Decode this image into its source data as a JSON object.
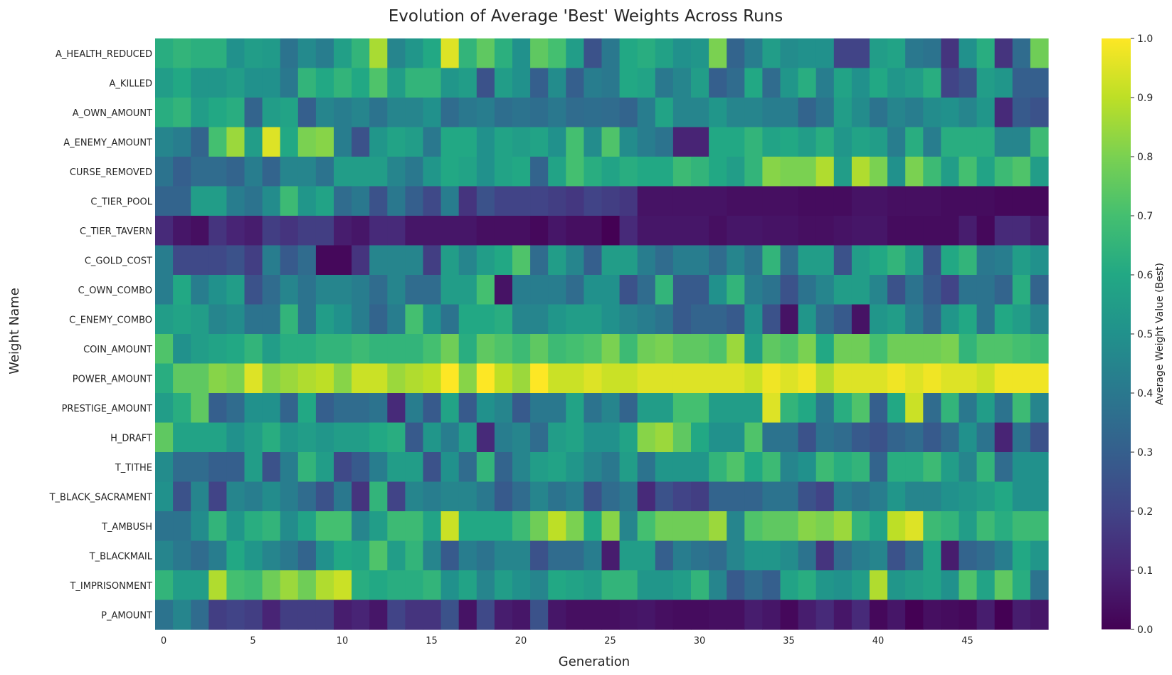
{
  "chart_data": {
    "type": "heatmap",
    "title": "Evolution of Average 'Best' Weights Across Runs",
    "xlabel": "Generation",
    "ylabel": "Weight Name",
    "x": [
      0,
      1,
      2,
      3,
      4,
      5,
      6,
      7,
      8,
      9,
      10,
      11,
      12,
      13,
      14,
      15,
      16,
      17,
      18,
      19,
      20,
      21,
      22,
      23,
      24,
      25,
      26,
      27,
      28,
      29,
      30,
      31,
      32,
      33,
      34,
      35,
      36,
      37,
      38,
      39,
      40,
      41,
      42,
      43,
      44,
      45,
      46,
      47,
      48,
      49
    ],
    "x_ticks": [
      0,
      5,
      10,
      15,
      20,
      25,
      30,
      35,
      40,
      45
    ],
    "rows": [
      "A_HEALTH_REDUCED",
      "A_KILLED",
      "A_OWN_AMOUNT",
      "A_ENEMY_AMOUNT",
      "CURSE_REMOVED",
      "C_TIER_POOL",
      "C_TIER_TAVERN",
      "C_GOLD_COST",
      "C_OWN_COMBO",
      "C_ENEMY_COMBO",
      "COIN_AMOUNT",
      "POWER_AMOUNT",
      "PRESTIGE_AMOUNT",
      "H_DRAFT",
      "T_TITHE",
      "T_BLACK_SACRAMENT",
      "T_AMBUSH",
      "T_BLACKMAIL",
      "T_IMPRISONMENT",
      "P_AMOUNT"
    ],
    "values": [
      [
        0.62,
        0.65,
        0.63,
        0.63,
        0.5,
        0.55,
        0.54,
        0.38,
        0.47,
        0.42,
        0.56,
        0.65,
        0.87,
        0.45,
        0.52,
        0.6,
        0.95,
        0.65,
        0.75,
        0.63,
        0.5,
        0.75,
        0.7,
        0.55,
        0.25,
        0.4,
        0.6,
        0.62,
        0.57,
        0.5,
        0.52,
        0.8,
        0.32,
        0.42,
        0.55,
        0.48,
        0.5,
        0.5,
        0.2,
        0.2,
        0.55,
        0.58,
        0.4,
        0.38,
        0.15,
        0.5,
        0.62,
        0.15,
        0.35,
        0.78
      ],
      [
        0.55,
        0.6,
        0.52,
        0.52,
        0.55,
        0.5,
        0.5,
        0.4,
        0.65,
        0.6,
        0.65,
        0.6,
        0.72,
        0.55,
        0.65,
        0.65,
        0.52,
        0.55,
        0.25,
        0.55,
        0.5,
        0.3,
        0.48,
        0.3,
        0.42,
        0.4,
        0.6,
        0.58,
        0.4,
        0.45,
        0.55,
        0.3,
        0.35,
        0.6,
        0.35,
        0.52,
        0.62,
        0.42,
        0.58,
        0.5,
        0.6,
        0.52,
        0.55,
        0.62,
        0.2,
        0.25,
        0.55,
        0.52,
        0.3,
        0.3
      ],
      [
        0.62,
        0.65,
        0.55,
        0.6,
        0.62,
        0.32,
        0.55,
        0.58,
        0.3,
        0.45,
        0.42,
        0.45,
        0.38,
        0.45,
        0.45,
        0.5,
        0.35,
        0.4,
        0.42,
        0.36,
        0.38,
        0.36,
        0.4,
        0.35,
        0.36,
        0.35,
        0.32,
        0.42,
        0.58,
        0.45,
        0.45,
        0.52,
        0.45,
        0.45,
        0.42,
        0.42,
        0.32,
        0.38,
        0.55,
        0.48,
        0.38,
        0.45,
        0.42,
        0.48,
        0.5,
        0.45,
        0.52,
        0.12,
        0.28,
        0.25
      ],
      [
        0.45,
        0.42,
        0.32,
        0.7,
        0.85,
        0.55,
        0.95,
        0.6,
        0.8,
        0.82,
        0.42,
        0.25,
        0.52,
        0.58,
        0.55,
        0.4,
        0.6,
        0.6,
        0.5,
        0.58,
        0.55,
        0.58,
        0.5,
        0.7,
        0.48,
        0.72,
        0.48,
        0.42,
        0.38,
        0.1,
        0.1,
        0.6,
        0.6,
        0.65,
        0.58,
        0.6,
        0.55,
        0.62,
        0.52,
        0.58,
        0.55,
        0.42,
        0.62,
        0.42,
        0.62,
        0.62,
        0.62,
        0.45,
        0.45,
        0.68
      ],
      [
        0.38,
        0.3,
        0.35,
        0.35,
        0.32,
        0.42,
        0.32,
        0.45,
        0.45,
        0.38,
        0.55,
        0.55,
        0.55,
        0.45,
        0.4,
        0.52,
        0.6,
        0.58,
        0.5,
        0.58,
        0.6,
        0.32,
        0.58,
        0.7,
        0.62,
        0.58,
        0.62,
        0.6,
        0.6,
        0.68,
        0.65,
        0.6,
        0.55,
        0.65,
        0.82,
        0.8,
        0.8,
        0.88,
        0.55,
        0.88,
        0.8,
        0.5,
        0.8,
        0.68,
        0.55,
        0.7,
        0.58,
        0.68,
        0.72,
        0.55
      ],
      [
        0.32,
        0.32,
        0.55,
        0.55,
        0.42,
        0.38,
        0.48,
        0.68,
        0.52,
        0.58,
        0.35,
        0.4,
        0.25,
        0.4,
        0.3,
        0.22,
        0.42,
        0.15,
        0.25,
        0.2,
        0.2,
        0.2,
        0.18,
        0.16,
        0.2,
        0.18,
        0.16,
        0.05,
        0.05,
        0.05,
        0.05,
        0.05,
        0.04,
        0.04,
        0.04,
        0.04,
        0.03,
        0.03,
        0.03,
        0.05,
        0.05,
        0.04,
        0.04,
        0.04,
        0.03,
        0.03,
        0.03,
        0.02,
        0.02,
        0.02
      ],
      [
        0.12,
        0.06,
        0.04,
        0.15,
        0.1,
        0.08,
        0.18,
        0.15,
        0.18,
        0.18,
        0.08,
        0.06,
        0.12,
        0.12,
        0.06,
        0.06,
        0.06,
        0.06,
        0.04,
        0.04,
        0.04,
        0.02,
        0.06,
        0.04,
        0.04,
        0.0,
        0.12,
        0.06,
        0.06,
        0.06,
        0.06,
        0.04,
        0.06,
        0.06,
        0.05,
        0.05,
        0.04,
        0.04,
        0.05,
        0.06,
        0.06,
        0.03,
        0.03,
        0.03,
        0.03,
        0.08,
        0.02,
        0.12,
        0.12,
        0.08
      ],
      [
        0.42,
        0.22,
        0.22,
        0.22,
        0.25,
        0.18,
        0.42,
        0.28,
        0.35,
        0.02,
        0.02,
        0.15,
        0.45,
        0.45,
        0.45,
        0.18,
        0.55,
        0.45,
        0.55,
        0.6,
        0.72,
        0.35,
        0.55,
        0.45,
        0.3,
        0.55,
        0.55,
        0.42,
        0.35,
        0.42,
        0.42,
        0.35,
        0.45,
        0.38,
        0.65,
        0.35,
        0.55,
        0.55,
        0.25,
        0.55,
        0.6,
        0.65,
        0.55,
        0.25,
        0.6,
        0.65,
        0.4,
        0.42,
        0.55,
        0.5
      ],
      [
        0.42,
        0.6,
        0.42,
        0.5,
        0.55,
        0.25,
        0.35,
        0.45,
        0.38,
        0.45,
        0.45,
        0.42,
        0.35,
        0.45,
        0.35,
        0.35,
        0.55,
        0.55,
        0.7,
        0.05,
        0.42,
        0.42,
        0.42,
        0.35,
        0.5,
        0.5,
        0.25,
        0.35,
        0.65,
        0.28,
        0.28,
        0.5,
        0.65,
        0.42,
        0.38,
        0.25,
        0.38,
        0.45,
        0.55,
        0.55,
        0.45,
        0.25,
        0.38,
        0.28,
        0.2,
        0.38,
        0.38,
        0.32,
        0.62,
        0.32
      ],
      [
        0.55,
        0.58,
        0.55,
        0.45,
        0.48,
        0.38,
        0.38,
        0.65,
        0.38,
        0.55,
        0.5,
        0.42,
        0.32,
        0.42,
        0.7,
        0.5,
        0.38,
        0.6,
        0.6,
        0.62,
        0.45,
        0.45,
        0.52,
        0.55,
        0.55,
        0.5,
        0.45,
        0.42,
        0.38,
        0.28,
        0.32,
        0.32,
        0.28,
        0.5,
        0.25,
        0.05,
        0.52,
        0.35,
        0.28,
        0.05,
        0.52,
        0.55,
        0.42,
        0.32,
        0.52,
        0.6,
        0.38,
        0.6,
        0.55,
        0.45
      ],
      [
        0.72,
        0.5,
        0.55,
        0.58,
        0.6,
        0.65,
        0.55,
        0.62,
        0.62,
        0.65,
        0.65,
        0.68,
        0.65,
        0.65,
        0.65,
        0.7,
        0.78,
        0.62,
        0.75,
        0.72,
        0.68,
        0.75,
        0.68,
        0.7,
        0.72,
        0.8,
        0.68,
        0.78,
        0.8,
        0.75,
        0.75,
        0.72,
        0.85,
        0.55,
        0.75,
        0.72,
        0.8,
        0.6,
        0.78,
        0.78,
        0.7,
        0.78,
        0.78,
        0.78,
        0.8,
        0.65,
        0.72,
        0.72,
        0.7,
        0.68
      ],
      [
        0.62,
        0.75,
        0.75,
        0.82,
        0.8,
        0.95,
        0.82,
        0.85,
        0.88,
        0.9,
        0.82,
        0.92,
        0.92,
        0.85,
        0.88,
        0.9,
        1.0,
        0.82,
        1.0,
        0.9,
        0.85,
        1.0,
        0.92,
        0.92,
        0.95,
        0.92,
        0.92,
        0.95,
        0.95,
        0.95,
        0.95,
        0.95,
        0.95,
        0.92,
        0.98,
        0.95,
        0.98,
        0.88,
        0.95,
        0.95,
        0.95,
        0.98,
        0.95,
        0.98,
        0.95,
        0.95,
        0.92,
        0.98,
        0.98,
        0.98
      ],
      [
        0.55,
        0.62,
        0.75,
        0.3,
        0.35,
        0.5,
        0.5,
        0.32,
        0.6,
        0.3,
        0.35,
        0.35,
        0.38,
        0.12,
        0.42,
        0.28,
        0.58,
        0.28,
        0.5,
        0.45,
        0.28,
        0.4,
        0.4,
        0.58,
        0.38,
        0.45,
        0.32,
        0.55,
        0.55,
        0.7,
        0.7,
        0.55,
        0.55,
        0.55,
        0.95,
        0.65,
        0.6,
        0.4,
        0.62,
        0.72,
        0.3,
        0.6,
        0.92,
        0.35,
        0.65,
        0.4,
        0.55,
        0.38,
        0.68,
        0.45
      ],
      [
        0.75,
        0.58,
        0.58,
        0.58,
        0.5,
        0.55,
        0.62,
        0.52,
        0.55,
        0.52,
        0.55,
        0.55,
        0.6,
        0.62,
        0.28,
        0.52,
        0.42,
        0.55,
        0.12,
        0.42,
        0.45,
        0.35,
        0.55,
        0.58,
        0.5,
        0.5,
        0.58,
        0.82,
        0.85,
        0.75,
        0.6,
        0.5,
        0.5,
        0.72,
        0.38,
        0.38,
        0.25,
        0.38,
        0.35,
        0.28,
        0.25,
        0.32,
        0.35,
        0.28,
        0.35,
        0.5,
        0.38,
        0.1,
        0.38,
        0.25
      ],
      [
        0.48,
        0.35,
        0.35,
        0.3,
        0.3,
        0.55,
        0.25,
        0.42,
        0.65,
        0.55,
        0.22,
        0.28,
        0.42,
        0.55,
        0.55,
        0.25,
        0.5,
        0.35,
        0.65,
        0.32,
        0.45,
        0.55,
        0.58,
        0.52,
        0.45,
        0.4,
        0.55,
        0.38,
        0.52,
        0.52,
        0.52,
        0.65,
        0.72,
        0.6,
        0.68,
        0.45,
        0.5,
        0.68,
        0.62,
        0.65,
        0.32,
        0.62,
        0.62,
        0.68,
        0.55,
        0.45,
        0.65,
        0.35,
        0.5,
        0.5
      ],
      [
        0.5,
        0.25,
        0.45,
        0.2,
        0.45,
        0.42,
        0.48,
        0.42,
        0.35,
        0.25,
        0.4,
        0.15,
        0.65,
        0.2,
        0.45,
        0.42,
        0.45,
        0.45,
        0.4,
        0.28,
        0.35,
        0.45,
        0.38,
        0.42,
        0.25,
        0.35,
        0.4,
        0.12,
        0.25,
        0.2,
        0.18,
        0.32,
        0.32,
        0.32,
        0.38,
        0.38,
        0.25,
        0.2,
        0.42,
        0.38,
        0.42,
        0.52,
        0.45,
        0.45,
        0.5,
        0.52,
        0.55,
        0.6,
        0.5,
        0.5
      ],
      [
        0.38,
        0.38,
        0.48,
        0.65,
        0.52,
        0.62,
        0.65,
        0.48,
        0.58,
        0.7,
        0.7,
        0.45,
        0.55,
        0.68,
        0.68,
        0.58,
        0.92,
        0.6,
        0.6,
        0.6,
        0.68,
        0.78,
        0.9,
        0.8,
        0.6,
        0.82,
        0.45,
        0.7,
        0.78,
        0.78,
        0.78,
        0.85,
        0.45,
        0.72,
        0.75,
        0.75,
        0.82,
        0.8,
        0.85,
        0.65,
        0.58,
        0.9,
        0.95,
        0.68,
        0.65,
        0.55,
        0.68,
        0.62,
        0.68,
        0.68
      ],
      [
        0.45,
        0.4,
        0.35,
        0.42,
        0.6,
        0.52,
        0.45,
        0.4,
        0.32,
        0.5,
        0.6,
        0.58,
        0.72,
        0.55,
        0.65,
        0.45,
        0.28,
        0.42,
        0.38,
        0.45,
        0.45,
        0.25,
        0.35,
        0.35,
        0.42,
        0.08,
        0.55,
        0.55,
        0.3,
        0.42,
        0.38,
        0.35,
        0.45,
        0.52,
        0.52,
        0.48,
        0.38,
        0.15,
        0.35,
        0.42,
        0.45,
        0.25,
        0.35,
        0.58,
        0.08,
        0.32,
        0.35,
        0.42,
        0.6,
        0.52
      ],
      [
        0.65,
        0.55,
        0.55,
        0.88,
        0.7,
        0.68,
        0.78,
        0.85,
        0.78,
        0.88,
        0.92,
        0.62,
        0.6,
        0.62,
        0.62,
        0.65,
        0.5,
        0.58,
        0.45,
        0.55,
        0.5,
        0.45,
        0.6,
        0.58,
        0.55,
        0.65,
        0.65,
        0.52,
        0.52,
        0.55,
        0.65,
        0.45,
        0.28,
        0.35,
        0.3,
        0.58,
        0.62,
        0.52,
        0.5,
        0.55,
        0.88,
        0.52,
        0.55,
        0.58,
        0.5,
        0.72,
        0.58,
        0.75,
        0.62,
        0.38
      ],
      [
        0.38,
        0.45,
        0.35,
        0.18,
        0.2,
        0.18,
        0.1,
        0.18,
        0.18,
        0.18,
        0.08,
        0.1,
        0.06,
        0.2,
        0.15,
        0.15,
        0.25,
        0.05,
        0.22,
        0.08,
        0.06,
        0.25,
        0.06,
        0.04,
        0.04,
        0.04,
        0.05,
        0.06,
        0.04,
        0.03,
        0.03,
        0.04,
        0.04,
        0.08,
        0.06,
        0.02,
        0.08,
        0.12,
        0.06,
        0.12,
        0.02,
        0.06,
        0.0,
        0.04,
        0.03,
        0.02,
        0.08,
        0.0,
        0.08,
        0.06
      ]
    ],
    "colorbar": {
      "label": "Average Weight Value (Best)",
      "range": [
        0,
        1
      ],
      "ticks": [
        "0.0",
        "0.1",
        "0.2",
        "0.3",
        "0.4",
        "0.5",
        "0.6",
        "0.7",
        "0.8",
        "0.9",
        "1.0"
      ],
      "colormap": "viridis"
    }
  }
}
